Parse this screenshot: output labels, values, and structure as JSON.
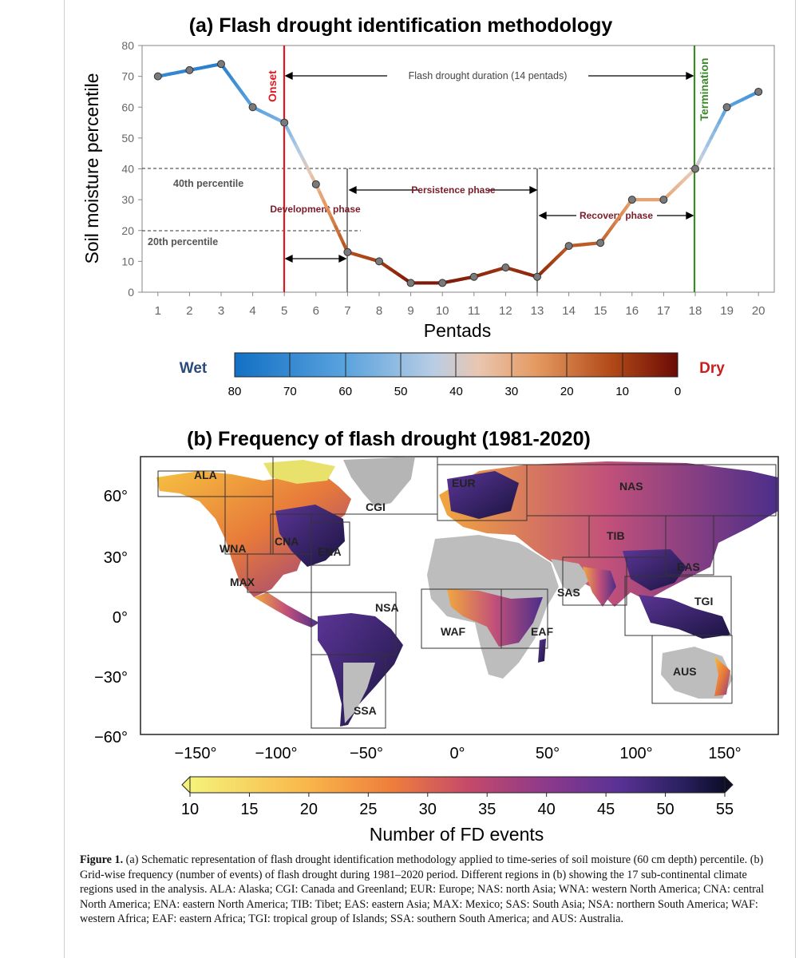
{
  "panel_a": {
    "title": "(a) Flash drought identification methodology",
    "annotations": {
      "onset": "Onset",
      "termination": "Termination",
      "duration": "Flash drought duration (14 pentads)",
      "p40": "40th percentile",
      "p20": "20th percentile",
      "development": "Development phase",
      "persistence": "Persistence phase",
      "recovery": "Recovery phase"
    },
    "colorbar": {
      "wet": "Wet",
      "dry": "Dry",
      "ticks": [
        "80",
        "70",
        "60",
        "50",
        "40",
        "30",
        "20",
        "10",
        "0"
      ]
    }
  },
  "panel_b": {
    "title": "(b) Frequency of flash drought (1981-2020)",
    "lat_ticks": [
      "60°",
      "30°",
      "0°",
      "−30°",
      "−60°"
    ],
    "lon_ticks": [
      "−150°",
      "−100°",
      "−50°",
      "0°",
      "50°",
      "100°",
      "150°"
    ],
    "regions": [
      {
        "code": "ALA"
      },
      {
        "code": "CGI"
      },
      {
        "code": "EUR"
      },
      {
        "code": "NAS"
      },
      {
        "code": "WNA"
      },
      {
        "code": "CNA"
      },
      {
        "code": "ENA"
      },
      {
        "code": "TIB"
      },
      {
        "code": "EAS"
      },
      {
        "code": "MAX"
      },
      {
        "code": "SAS"
      },
      {
        "code": "NSA"
      },
      {
        "code": "TGI"
      },
      {
        "code": "WAF"
      },
      {
        "code": "EAF"
      },
      {
        "code": "AUS"
      },
      {
        "code": "SSA"
      }
    ],
    "colorbar": {
      "ticks": [
        "10",
        "15",
        "20",
        "25",
        "30",
        "35",
        "40",
        "45",
        "50",
        "55"
      ],
      "label": "Number of FD events"
    }
  },
  "chart_data": [
    {
      "type": "line",
      "title": "(a) Flash drought identification methodology",
      "xlabel": "Pentads",
      "ylabel": "Soil moisture percentile",
      "x": [
        1,
        2,
        3,
        4,
        5,
        6,
        7,
        8,
        9,
        10,
        11,
        12,
        13,
        14,
        15,
        16,
        17,
        18,
        19,
        20
      ],
      "series": [
        {
          "values": [
            70,
            72,
            74,
            60,
            55,
            35,
            13,
            10,
            3,
            3,
            5,
            8,
            5,
            15,
            16,
            30,
            30,
            40,
            60,
            65
          ]
        }
      ],
      "xlim": [
        0.5,
        20.5
      ],
      "ylim": [
        0,
        80
      ],
      "yticks": [
        0,
        10,
        20,
        30,
        40,
        50,
        60,
        70,
        80
      ],
      "thresholds": [
        40,
        20
      ],
      "markers": {
        "onset_pentad": 5,
        "termination_pentad": 18,
        "phase_boundaries": [
          7,
          13
        ]
      },
      "grid": false
    }
  ],
  "caption": {
    "label": "Figure 1.",
    "text": " (a) Schematic representation of flash drought identification methodology applied to time-series of soil moisture (60 cm depth) percentile. (b) Grid-wise frequency (number of events) of flash drought during 1981–2020 period. Different regions in (b) showing the 17 sub-continental climate regions used in the analysis. ALA: Alaska; CGI: Canada and Greenland; EUR: Europe; NAS: north Asia; WNA: western North America; CNA: central North America; ENA: eastern North America; TIB: Tibet; EAS: eastern Asia; MAX: Mexico; SAS: South Asia; NSA: northern South America; WAF: western Africa; EAF: eastern Africa; TGI: tropical group of Islands; SSA: southern South America; and AUS: Australia."
  }
}
